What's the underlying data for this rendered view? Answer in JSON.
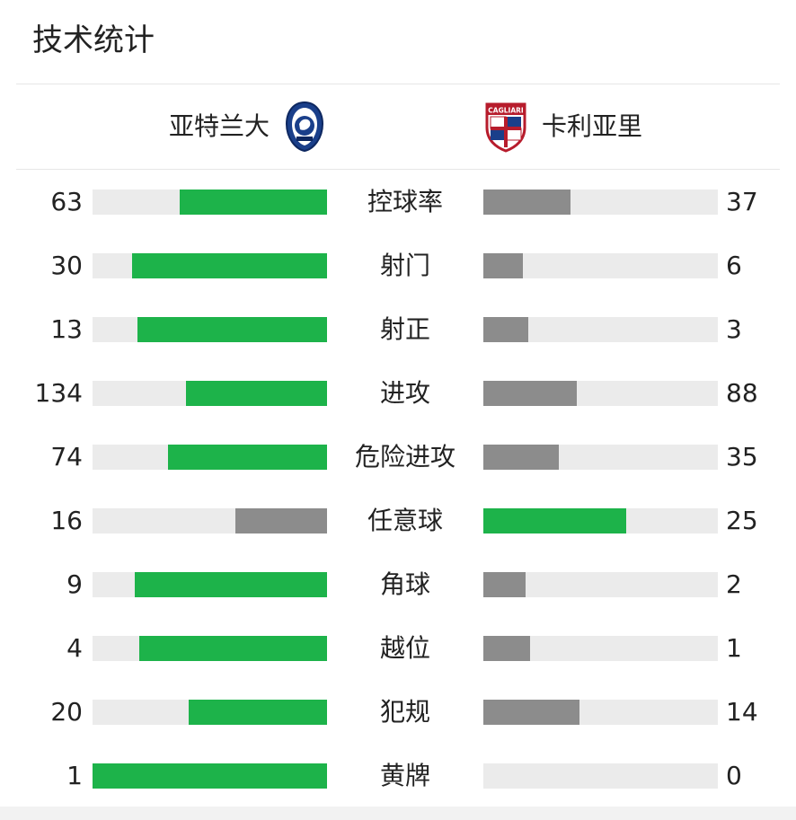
{
  "header": {
    "title": "技术统计"
  },
  "teams": {
    "home": {
      "name": "亚特兰大",
      "crest_icon": "atalanta-crest-icon"
    },
    "away": {
      "name": "卡利亚里",
      "crest_icon": "cagliari-crest-icon",
      "crest_text": "CAGLIARI"
    }
  },
  "colors": {
    "leader": "#1db34a",
    "trailer": "#8c8c8c",
    "track": "#ebebeb"
  },
  "stats": [
    {
      "label": "控球率",
      "home": "63",
      "away": "37",
      "home_value": 63,
      "away_value": 37,
      "home_ratio": 0.63,
      "away_ratio": 0.37
    },
    {
      "label": "射门",
      "home": "30",
      "away": "6",
      "home_value": 30,
      "away_value": 6,
      "home_ratio": 0.83,
      "away_ratio": 0.17
    },
    {
      "label": "射正",
      "home": "13",
      "away": "3",
      "home_value": 13,
      "away_value": 3,
      "home_ratio": 0.81,
      "away_ratio": 0.19
    },
    {
      "label": "进攻",
      "home": "134",
      "away": "88",
      "home_value": 134,
      "away_value": 88,
      "home_ratio": 0.6,
      "away_ratio": 0.4
    },
    {
      "label": "危险进攻",
      "home": "74",
      "away": "35",
      "home_value": 74,
      "away_value": 35,
      "home_ratio": 0.68,
      "away_ratio": 0.32
    },
    {
      "label": "任意球",
      "home": "16",
      "away": "25",
      "home_value": 16,
      "away_value": 25,
      "home_ratio": 0.39,
      "away_ratio": 0.61
    },
    {
      "label": "角球",
      "home": "9",
      "away": "2",
      "home_value": 9,
      "away_value": 2,
      "home_ratio": 0.82,
      "away_ratio": 0.18
    },
    {
      "label": "越位",
      "home": "4",
      "away": "1",
      "home_value": 4,
      "away_value": 1,
      "home_ratio": 0.8,
      "away_ratio": 0.2
    },
    {
      "label": "犯规",
      "home": "20",
      "away": "14",
      "home_value": 20,
      "away_value": 14,
      "home_ratio": 0.59,
      "away_ratio": 0.41
    },
    {
      "label": "黄牌",
      "home": "1",
      "away": "0",
      "home_value": 1,
      "away_value": 0,
      "home_ratio": 1.0,
      "away_ratio": 0.0
    }
  ]
}
